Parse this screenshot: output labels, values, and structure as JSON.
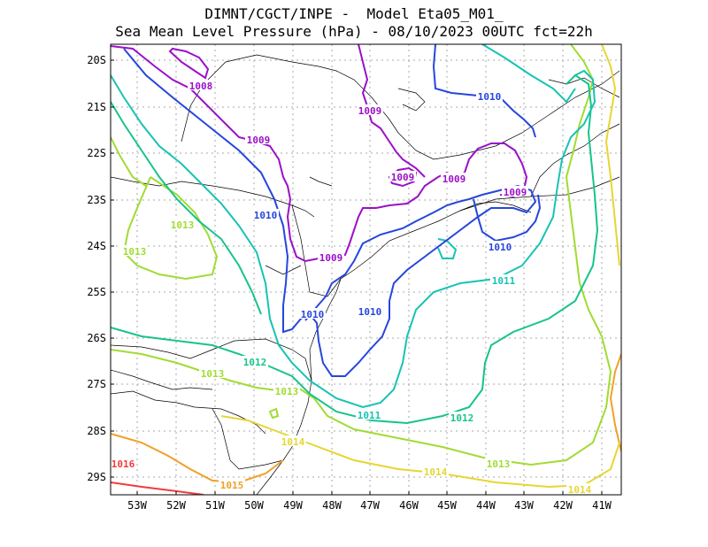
{
  "title_line1": "DIMNT/CGCT/INPE -  Model Eta05_M01_",
  "title_line2": "Sea Mean Level Pressure (hPa) - 08/10/2023 00UTC fct=22h",
  "lat_labels": [
    "20S",
    "21S",
    "22S",
    "23S",
    "24S",
    "25S",
    "26S",
    "27S",
    "28S",
    "29S"
  ],
  "lon_labels": [
    "53W",
    "52W",
    "51W",
    "50W",
    "49W",
    "48W",
    "47W",
    "46W",
    "45W",
    "44W",
    "43W",
    "42W",
    "41W"
  ],
  "contour_colors": {
    "1008": "#9b10c8",
    "1009": "#9b10c8",
    "1010": "#2646dc",
    "1011": "#17c3b4",
    "1012": "#17c38c",
    "1013": "#a0dc32",
    "1014": "#e6d632",
    "1015": "#f0a028",
    "1016": "#f03c3c"
  },
  "contour_labels": [
    {
      "text": "1008",
      "level": "1008"
    },
    {
      "text": "1009",
      "level": "1009"
    },
    {
      "text": "1009",
      "level": "1009"
    },
    {
      "text": "1009",
      "level": "1009"
    },
    {
      "text": "1009",
      "level": "1009"
    },
    {
      "text": "1009",
      "level": "1009"
    },
    {
      "text": "1009",
      "level": "1009"
    },
    {
      "text": "1010",
      "level": "1010"
    },
    {
      "text": "1010",
      "level": "1010"
    },
    {
      "text": "1010",
      "level": "1010"
    },
    {
      "text": "1010",
      "level": "1010"
    },
    {
      "text": "1010",
      "level": "1010"
    },
    {
      "text": "1011",
      "level": "1011"
    },
    {
      "text": "1011",
      "level": "1011"
    },
    {
      "text": "1012",
      "level": "1012"
    },
    {
      "text": "1012",
      "level": "1012"
    },
    {
      "text": "1013",
      "level": "1013"
    },
    {
      "text": "1013",
      "level": "1013"
    },
    {
      "text": "1013",
      "level": "1013"
    },
    {
      "text": "1013",
      "level": "1013"
    },
    {
      "text": "1013",
      "level": "1013"
    },
    {
      "text": "1014",
      "level": "1014"
    },
    {
      "text": "1014",
      "level": "1014"
    },
    {
      "text": "1014",
      "level": "1014"
    },
    {
      "text": "1015",
      "level": "1015"
    },
    {
      "text": "1016",
      "level": "1016"
    }
  ]
}
